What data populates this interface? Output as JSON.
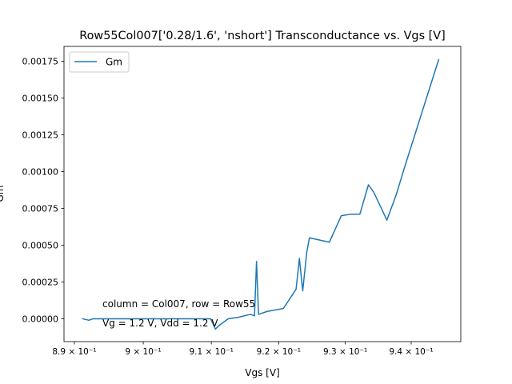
{
  "chart_data": {
    "type": "line",
    "title": "Row55Col007['0.28/1.6', 'nshort'] Transconductance vs. Vgs [V]",
    "xlabel": "Vgs [V]",
    "ylabel": "Gm",
    "xscale": "log",
    "xlim": [
      0.8885,
      0.9476
    ],
    "ylim": [
      -0.000155,
      0.00185
    ],
    "x_ticks": [
      {
        "value": 0.89,
        "label": "8.9 × 10⁻¹"
      },
      {
        "value": 0.9,
        "label": "9 × 10⁻¹"
      },
      {
        "value": 0.91,
        "label": "9.1 × 10⁻¹"
      },
      {
        "value": 0.92,
        "label": "9.2 × 10⁻¹"
      },
      {
        "value": 0.93,
        "label": "9.3 × 10⁻¹"
      },
      {
        "value": 0.94,
        "label": "9.4 × 10⁻¹"
      }
    ],
    "y_ticks": [
      {
        "value": 0.0,
        "label": "0.00000"
      },
      {
        "value": 0.00025,
        "label": "0.00025"
      },
      {
        "value": 0.0005,
        "label": "0.00050"
      },
      {
        "value": 0.00075,
        "label": "0.00075"
      },
      {
        "value": 0.001,
        "label": "0.00100"
      },
      {
        "value": 0.00125,
        "label": "0.00125"
      },
      {
        "value": 0.0015,
        "label": "0.00150"
      },
      {
        "value": 0.00175,
        "label": "0.00175"
      }
    ],
    "legend": {
      "placement": "upper-left",
      "entries": [
        "Gm"
      ]
    },
    "grid": false,
    "line_color": "#1f77b4",
    "annotations": [
      "column = Col007, row = Row55",
      "Vg = 1.2 V, Vdd = 1.2 V"
    ],
    "series": [
      {
        "name": "Gm",
        "x": [
          0.8912,
          0.8921,
          0.8927,
          0.8945,
          0.8965,
          0.8985,
          0.9005,
          0.9025,
          0.9045,
          0.9065,
          0.9085,
          0.9099,
          0.9106,
          0.9113,
          0.9125,
          0.914,
          0.9158,
          0.9164,
          0.9167,
          0.917,
          0.9183,
          0.9207,
          0.9226,
          0.9231,
          0.9236,
          0.9242,
          0.9246,
          0.9276,
          0.9294,
          0.9308,
          0.9322,
          0.9335,
          0.9343,
          0.9363,
          0.9377,
          0.939,
          0.9442
        ],
        "y": [
          0.0,
          -1e-05,
          0.0,
          0.0,
          0.0,
          0.0,
          0.0,
          0.0,
          0.0,
          0.0,
          0.0,
          0.0,
          -7e-05,
          -4e-05,
          0.0,
          1e-05,
          3e-05,
          2e-05,
          0.00039,
          3e-05,
          5e-05,
          7e-05,
          0.0002,
          0.00041,
          0.00019,
          0.00045,
          0.00055,
          0.00052,
          0.0007,
          0.00071,
          0.00071,
          0.00091,
          0.00086,
          0.00067,
          0.00084,
          0.00103,
          0.00176
        ]
      }
    ]
  }
}
